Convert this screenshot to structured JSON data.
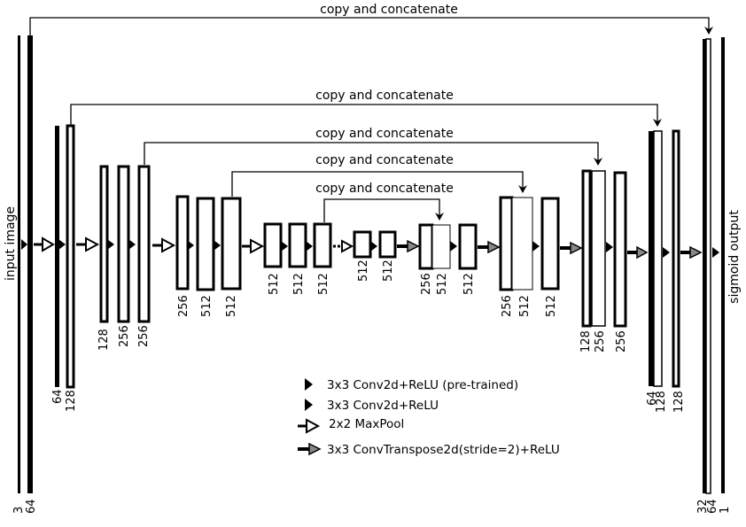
{
  "skip_label": "copy and concatenate",
  "side_labels": {
    "input": "input image",
    "output": "sigmoid output"
  },
  "channel_labels": {
    "c3": "3",
    "c64a": "64",
    "c64b": "64",
    "c128a": "128",
    "c128b": "128",
    "c256a": "256",
    "c256b": "256",
    "c256c": "256",
    "c512a": "512",
    "c512b": "512",
    "c512c": "512",
    "c512d": "512",
    "c512e": "512",
    "c512f": "512",
    "c512g": "512",
    "d256": "256",
    "d512a": "512",
    "d512b": "512",
    "d256b": "256",
    "d512c": "512",
    "d512d": "512",
    "d128": "128",
    "d256c": "256",
    "d256d": "256",
    "d64": "64",
    "d128b": "128",
    "d128c": "128",
    "d32": "32",
    "d64b": "64",
    "d1": "1"
  },
  "legend": {
    "conv_pretrained": "3x3 Conv2d+ReLU (pre-trained)",
    "conv": "3x3 Conv2d+ReLU",
    "maxpool": "2x2 MaxPool",
    "convtranspose": "3x3 ConvTranspose2d(stride=2)+ReLU"
  }
}
